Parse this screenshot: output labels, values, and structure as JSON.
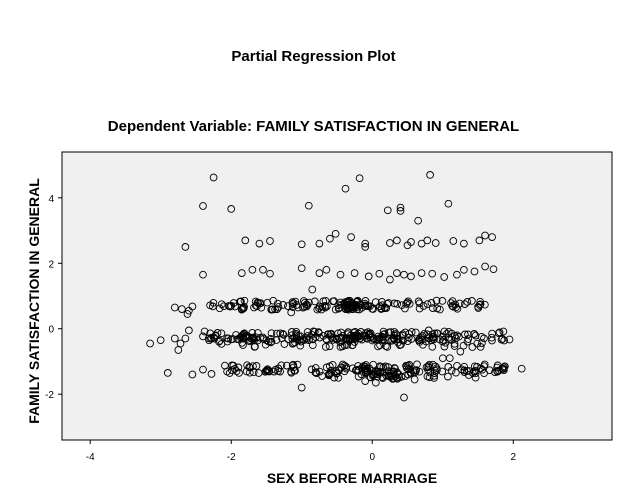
{
  "chart_data": {
    "type": "scatter",
    "title": "Partial Regression Plot",
    "subtitle": "Dependent Variable: FAMILY SATISFACTION IN GENERAL",
    "xlabel": "SEX BEFORE MARRIAGE",
    "ylabel": "FAMILY SATISFACTION IN GENERAL",
    "xlim": [
      -4.4,
      3.4
    ],
    "ylim": [
      -3.4,
      5.4
    ],
    "xticks": [
      -4,
      -2,
      0,
      2
    ],
    "yticks": [
      -2,
      0,
      2,
      4
    ],
    "grid": false,
    "background": "#f0f0f0",
    "marker": "open-circle",
    "points": [
      [
        -2.25,
        4.62
      ],
      [
        -0.38,
        4.28
      ],
      [
        -0.18,
        4.6
      ],
      [
        0.82,
        4.7
      ],
      [
        1.08,
        3.82
      ],
      [
        -2.4,
        3.75
      ],
      [
        -2.0,
        3.66
      ],
      [
        -0.9,
        3.76
      ],
      [
        0.22,
        3.62
      ],
      [
        0.4,
        3.7
      ],
      [
        0.4,
        3.6
      ],
      [
        0.65,
        3.3
      ],
      [
        -2.65,
        2.5
      ],
      [
        -1.8,
        2.7
      ],
      [
        -1.6,
        2.6
      ],
      [
        -1.45,
        2.68
      ],
      [
        -1.0,
        2.58
      ],
      [
        -0.75,
        2.6
      ],
      [
        -0.6,
        2.75
      ],
      [
        -0.52,
        2.9
      ],
      [
        -0.3,
        2.8
      ],
      [
        -0.1,
        2.5
      ],
      [
        -0.1,
        2.6
      ],
      [
        0.25,
        2.62
      ],
      [
        0.35,
        2.7
      ],
      [
        0.5,
        2.55
      ],
      [
        0.55,
        2.65
      ],
      [
        0.7,
        2.6
      ],
      [
        0.78,
        2.7
      ],
      [
        0.9,
        2.62
      ],
      [
        1.15,
        2.68
      ],
      [
        1.3,
        2.6
      ],
      [
        1.52,
        2.7
      ],
      [
        1.6,
        2.85
      ],
      [
        1.7,
        2.8
      ],
      [
        -2.4,
        1.65
      ],
      [
        -1.85,
        1.7
      ],
      [
        -1.7,
        1.8
      ],
      [
        -1.55,
        1.8
      ],
      [
        -1.45,
        1.68
      ],
      [
        -1.0,
        1.85
      ],
      [
        -0.75,
        1.7
      ],
      [
        -0.65,
        1.8
      ],
      [
        -0.45,
        1.65
      ],
      [
        -0.25,
        1.7
      ],
      [
        -0.05,
        1.6
      ],
      [
        0.1,
        1.68
      ],
      [
        0.25,
        1.5
      ],
      [
        0.35,
        1.7
      ],
      [
        0.45,
        1.65
      ],
      [
        0.55,
        1.6
      ],
      [
        0.7,
        1.7
      ],
      [
        0.85,
        1.68
      ],
      [
        1.02,
        1.58
      ],
      [
        1.2,
        1.65
      ],
      [
        1.3,
        1.8
      ],
      [
        1.45,
        1.75
      ],
      [
        1.6,
        1.9
      ],
      [
        1.72,
        1.82
      ],
      [
        -0.85,
        1.2
      ],
      [
        -2.6,
        0.55
      ],
      [
        -2.0,
        0.7
      ],
      [
        -1.35,
        0.6
      ],
      [
        -1.15,
        0.5
      ],
      [
        -0.45,
        0.8
      ],
      [
        -2.8,
        0.65
      ],
      [
        -2.7,
        0.6
      ],
      [
        -2.55,
        0.68
      ],
      [
        -2.62,
        0.45
      ],
      [
        -2.6,
        -0.05
      ],
      [
        -2.65,
        -0.3
      ],
      [
        -2.75,
        -0.65
      ],
      [
        -2.8,
        -0.3
      ],
      [
        -3.15,
        -0.45
      ],
      [
        -3.0,
        -0.35
      ],
      [
        -2.72,
        -0.45
      ],
      [
        -2.9,
        -1.35
      ],
      [
        -2.55,
        -1.4
      ],
      [
        -2.4,
        -1.25
      ],
      [
        -2.28,
        -1.38
      ],
      [
        -1.0,
        -1.8
      ],
      [
        0.05,
        -1.65
      ],
      [
        0.45,
        -2.1
      ],
      [
        1.0,
        -0.9
      ],
      [
        2.12,
        -1.22
      ],
      [
        0.8,
        -0.05
      ],
      [
        1.25,
        -0.7
      ],
      [
        1.1,
        -0.9
      ],
      [
        -0.1,
        -1.6
      ],
      [
        0.6,
        -1.55
      ]
    ],
    "bands": [
      {
        "y": 0.72,
        "x_from": -2.3,
        "x_to": 1.75,
        "count": 170
      },
      {
        "y": -0.22,
        "x_from": -2.4,
        "x_to": 2.0,
        "count": 200
      },
      {
        "y": -0.42,
        "x_from": -2.2,
        "x_to": 1.6,
        "count": 90
      },
      {
        "y": -1.22,
        "x_from": -2.1,
        "x_to": 1.95,
        "count": 150
      },
      {
        "y": -1.4,
        "x_from": -1.0,
        "x_to": 1.5,
        "count": 60
      }
    ]
  }
}
